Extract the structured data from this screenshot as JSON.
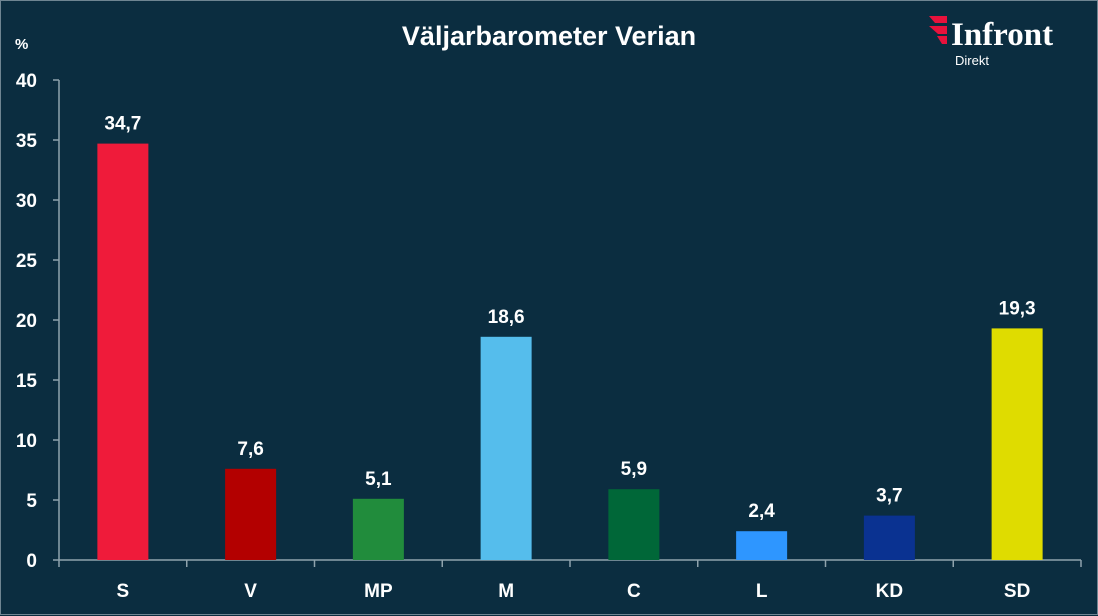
{
  "chart_data": {
    "type": "bar",
    "title": "Väljarbarometer Verian",
    "ylabel": "%",
    "xlabel": "",
    "categories": [
      "S",
      "V",
      "MP",
      "M",
      "C",
      "L",
      "KD",
      "SD"
    ],
    "values": [
      34.7,
      7.6,
      5.1,
      18.6,
      5.9,
      2.4,
      3.7,
      19.3
    ],
    "data_labels": [
      "34,7",
      "7,6",
      "5,1",
      "18,6",
      "5,9",
      "2,4",
      "3,7",
      "19,3"
    ],
    "colors": [
      "#ef1b3a",
      "#b30000",
      "#218c3c",
      "#55bdec",
      "#006738",
      "#2e96ff",
      "#0a3291",
      "#dfdc00"
    ],
    "ylim": [
      0,
      40
    ],
    "yticks": [
      "0",
      "5",
      "10",
      "15",
      "20",
      "25",
      "30",
      "35",
      "40"
    ],
    "grid": false,
    "legend": "none"
  },
  "logo": {
    "name": "Infront",
    "sub": "Direkt",
    "accent": "#e8123c"
  },
  "colors": {
    "background": "#0b2d40",
    "text": "#ffffff",
    "axis": "#8fa3ad"
  }
}
